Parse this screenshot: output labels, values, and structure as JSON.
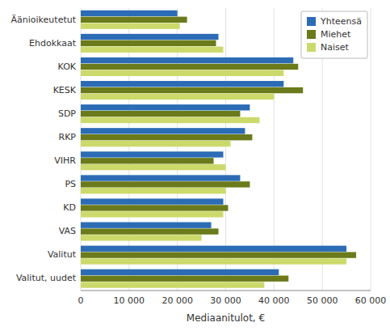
{
  "chart_data": {
    "type": "bar",
    "orientation": "horizontal",
    "categories": [
      "Äänioikeutetut",
      "Ehdokkaat",
      "KOK",
      "KESK",
      "SDP",
      "RKP",
      "VIHR",
      "PS",
      "KD",
      "VAS",
      "Valitut",
      "Valitut, uudet"
    ],
    "series": [
      {
        "name": "Yhteensä",
        "color": "#2b6cb5",
        "values": [
          20000,
          28500,
          44000,
          42000,
          35000,
          34000,
          29500,
          33000,
          29500,
          27000,
          55000,
          41000
        ]
      },
      {
        "name": "Miehet",
        "color": "#6b7a1a",
        "values": [
          22000,
          28000,
          45000,
          46000,
          33000,
          35500,
          27500,
          35000,
          30500,
          28500,
          57000,
          43000
        ]
      },
      {
        "name": "Naiset",
        "color": "#ccd96b",
        "values": [
          20500,
          29500,
          42000,
          40000,
          37000,
          31000,
          30000,
          30000,
          29500,
          25000,
          55000,
          38000
        ]
      }
    ],
    "xlabel": "Mediaanitulot, €",
    "xlim": [
      0,
      60000
    ],
    "xticks": [
      0,
      {
        "value": 10000,
        "label": "10 000"
      },
      {
        "value": 20000,
        "label": "20 000"
      },
      {
        "value": 30000,
        "label": "30 000"
      },
      {
        "value": 40000,
        "label": "40 000"
      },
      {
        "value": 50000,
        "label": "50 000"
      },
      {
        "value": 60000,
        "label": "60 000"
      }
    ],
    "grid": true,
    "legend": "upper right"
  }
}
